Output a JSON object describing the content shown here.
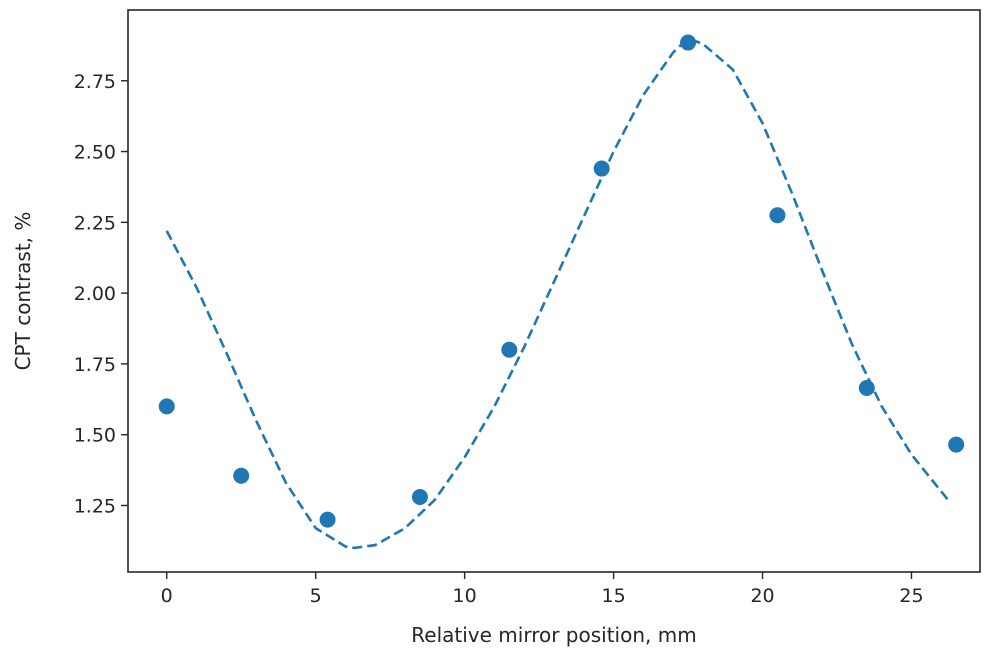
{
  "chart_data": {
    "type": "scatter",
    "title": "",
    "xlabel": "Relative mirror position, mm",
    "ylabel": "CPT contrast, %",
    "xlim": [
      -1.3,
      27.3
    ],
    "ylim": [
      1.015,
      3.0
    ],
    "x_ticks": [
      0,
      5,
      10,
      15,
      20,
      25
    ],
    "x_tick_labels": [
      "0",
      "5",
      "10",
      "15",
      "20",
      "25"
    ],
    "y_ticks": [
      1.25,
      1.5,
      1.75,
      2.0,
      2.25,
      2.5,
      2.75
    ],
    "y_tick_labels": [
      "1.25",
      "1.50",
      "1.75",
      "2.00",
      "2.25",
      "2.50",
      "2.75"
    ],
    "grid": false,
    "legend": "none",
    "color": "#1f77b4",
    "series": [
      {
        "type": "scatter",
        "x": [
          0,
          2.5,
          5.4,
          8.5,
          11.5,
          14.6,
          17.5,
          20.5,
          23.5,
          26.5
        ],
        "y": [
          1.6,
          1.355,
          1.2,
          1.28,
          1.8,
          2.44,
          2.885,
          2.275,
          1.665,
          1.465
        ]
      },
      {
        "type": "line",
        "style": "dashed",
        "x": [
          0,
          1,
          2,
          3,
          4,
          5,
          6,
          6.3,
          7,
          8,
          9,
          10,
          11,
          12,
          13,
          14,
          15,
          16,
          17,
          17.5,
          18,
          19,
          20,
          21,
          22,
          23,
          24,
          25,
          26.3
        ],
        "y": [
          2.22,
          2.02,
          1.79,
          1.55,
          1.33,
          1.17,
          1.105,
          1.1,
          1.11,
          1.17,
          1.27,
          1.42,
          1.6,
          1.81,
          2.04,
          2.27,
          2.5,
          2.7,
          2.85,
          2.9,
          2.88,
          2.79,
          2.6,
          2.35,
          2.08,
          1.82,
          1.6,
          1.43,
          1.26
        ]
      }
    ]
  }
}
